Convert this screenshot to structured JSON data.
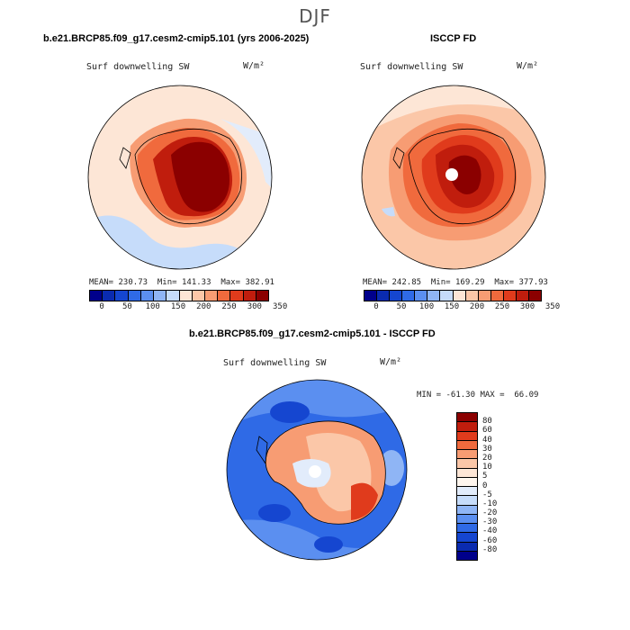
{
  "figure": {
    "title": "DJF"
  },
  "panels": [
    {
      "case_title": "b.e21.BRCP85.f09_g17.cesm2-cmip5.101 (yrs 2006-2025)",
      "variable": "Surf downwelling SW",
      "units": "W/m²",
      "stats": {
        "mean_label": "MEAN=",
        "mean": "230.73",
        "min_label": "Min=",
        "min": "141.33",
        "max_label": "Max=",
        "max": "382.91"
      },
      "colorbar_ticks": [
        "0",
        "50",
        "100",
        "150",
        "200",
        "250",
        "300",
        "350"
      ]
    },
    {
      "case_title": "ISCCP FD",
      "variable": "Surf downwelling SW",
      "units": "W/m²",
      "stats": {
        "mean_label": "MEAN=",
        "mean": "242.85",
        "min_label": "Min=",
        "min": "169.29",
        "max_label": "Max=",
        "max": "377.93"
      },
      "colorbar_ticks": [
        "0",
        "50",
        "100",
        "150",
        "200",
        "250",
        "300",
        "350"
      ]
    },
    {
      "case_title": "b.e21.BRCP85.f09_g17.cesm2-cmip5.101 - ISCCP FD",
      "variable": "Surf downwelling SW",
      "units": "W/m²",
      "stats_text": "MIN = -61.30 MAX =  66.09",
      "colorbar_ticks": [
        "80",
        "60",
        "40",
        "30",
        "20",
        "10",
        "5",
        "0",
        "-5",
        "-10",
        "-20",
        "-30",
        "-40",
        "-60",
        "-80"
      ]
    }
  ],
  "colors": {
    "abs_scale": [
      "#00008b",
      "#0a2bb0",
      "#1546d0",
      "#2f6ae6",
      "#5b8ff0",
      "#8fb5f5",
      "#c6dcfa",
      "#fde6d6",
      "#fbc7a8",
      "#f79c73",
      "#f06a3d",
      "#e03b1c",
      "#c01d0d",
      "#8b0000"
    ],
    "diff_scale": [
      "#8b0000",
      "#c01d0d",
      "#e03b1c",
      "#f06a3d",
      "#f79c73",
      "#fbc7a8",
      "#fde6d6",
      "#fff6ee",
      "#e2ecfb",
      "#c6dcfa",
      "#8fb5f5",
      "#5b8ff0",
      "#2f6ae6",
      "#1546d0",
      "#0a2bb0",
      "#00008b"
    ]
  }
}
